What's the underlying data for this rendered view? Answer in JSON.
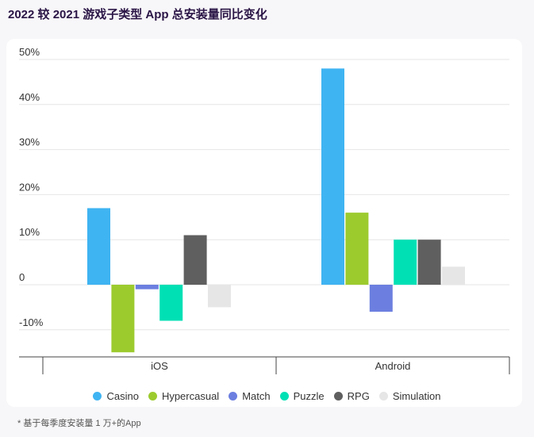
{
  "title": "2022 较 2021 游戏子类型 App 总安装量同比变化",
  "footnote": "* 基于每季度安装量 1 万+的App",
  "chart_data": {
    "type": "bar",
    "categories": [
      "iOS",
      "Android"
    ],
    "y_tick_labels": [
      "50%",
      "40%",
      "30%",
      "20%",
      "10%",
      "0",
      "-10%"
    ],
    "y_tick_values": [
      50,
      40,
      30,
      20,
      10,
      0,
      -10
    ],
    "ylim": [
      -15,
      52
    ],
    "grid": true,
    "legend_position": "bottom",
    "series": [
      {
        "name": "Casino",
        "color": "#3fb4f2",
        "values": [
          17,
          48
        ]
      },
      {
        "name": "Hypercasual",
        "color": "#9ccb2e",
        "values": [
          -15,
          16
        ]
      },
      {
        "name": "Match",
        "color": "#6c7fe0",
        "values": [
          -1,
          -6
        ]
      },
      {
        "name": "Puzzle",
        "color": "#00e0b5",
        "values": [
          -8,
          10
        ]
      },
      {
        "name": "RPG",
        "color": "#5f5f5f",
        "values": [
          11,
          10
        ]
      },
      {
        "name": "Simulation",
        "color": "#e6e6e6",
        "values": [
          -5,
          4
        ]
      }
    ]
  }
}
